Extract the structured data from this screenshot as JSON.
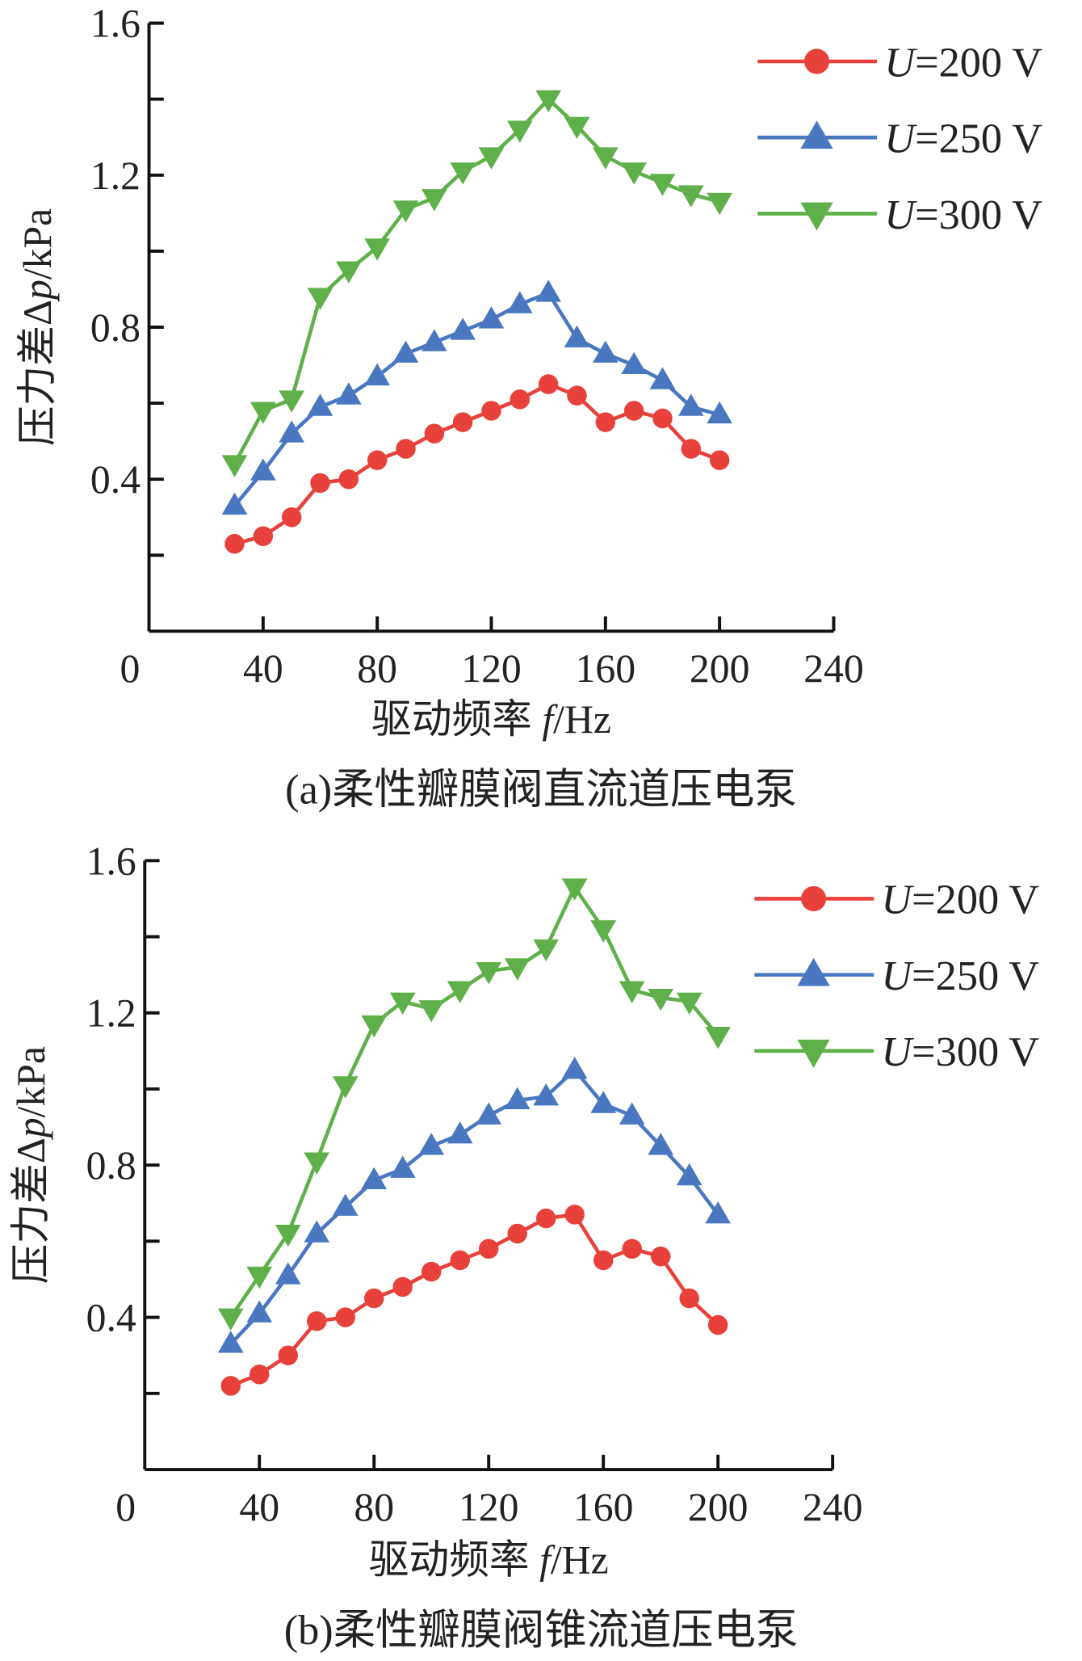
{
  "chart_data": [
    {
      "type": "line",
      "caption": "(a)柔性瓣膜阀直流道压电泵",
      "xlabel": "驱动频率 f/Hz",
      "ylabel": "压力差Δp/kPa",
      "xlim": [
        0,
        240
      ],
      "ylim": [
        0,
        1.6
      ],
      "xticks": [
        "0",
        "40",
        "80",
        "120",
        "160",
        "200",
        "240"
      ],
      "yticks": [
        "0.4",
        "0.8",
        "1.2",
        "1.6"
      ],
      "legend_position": "top-right",
      "x": [
        30,
        40,
        50,
        60,
        70,
        80,
        90,
        100,
        110,
        120,
        130,
        140,
        150,
        160,
        170,
        180,
        190,
        200
      ],
      "series": [
        {
          "name": "U=200 V",
          "marker": "circle",
          "color": "#e8403a",
          "values": [
            0.23,
            0.25,
            0.3,
            0.39,
            0.4,
            0.45,
            0.48,
            0.52,
            0.55,
            0.58,
            0.61,
            0.65,
            0.62,
            0.55,
            0.58,
            0.56,
            0.48,
            0.45
          ]
        },
        {
          "name": "U=250 V",
          "marker": "triangle-up",
          "color": "#4a78c0",
          "values": [
            0.33,
            0.42,
            0.52,
            0.59,
            0.62,
            0.67,
            0.73,
            0.76,
            0.79,
            0.82,
            0.86,
            0.89,
            0.77,
            0.73,
            0.7,
            0.66,
            0.59,
            0.57
          ]
        },
        {
          "name": "U=300 V",
          "marker": "triangle-down",
          "color": "#5fb04a",
          "values": [
            0.44,
            0.58,
            0.61,
            0.88,
            0.95,
            1.01,
            1.11,
            1.14,
            1.21,
            1.25,
            1.32,
            1.4,
            1.33,
            1.25,
            1.21,
            1.18,
            1.15,
            1.13
          ]
        }
      ]
    },
    {
      "type": "line",
      "caption": "(b)柔性瓣膜阀锥流道压电泵",
      "xlabel": "驱动频率 f/Hz",
      "ylabel": "压力差Δp/kPa",
      "xlim": [
        0,
        240
      ],
      "ylim": [
        0,
        1.6
      ],
      "xticks": [
        "0",
        "40",
        "80",
        "120",
        "160",
        "200",
        "240"
      ],
      "yticks": [
        "0.4",
        "0.8",
        "1.2",
        "1.6"
      ],
      "legend_position": "top-right",
      "x": [
        30,
        40,
        50,
        60,
        70,
        80,
        90,
        100,
        110,
        120,
        130,
        140,
        150,
        160,
        170,
        180,
        190,
        200
      ],
      "series": [
        {
          "name": "U=200 V",
          "marker": "circle",
          "color": "#e8403a",
          "values": [
            0.22,
            0.25,
            0.3,
            0.39,
            0.4,
            0.45,
            0.48,
            0.52,
            0.55,
            0.58,
            0.62,
            0.66,
            0.67,
            0.55,
            0.58,
            0.56,
            0.45,
            0.38
          ]
        },
        {
          "name": "U=250 V",
          "marker": "triangle-up",
          "color": "#4a78c0",
          "values": [
            0.33,
            0.41,
            0.51,
            0.62,
            0.69,
            0.76,
            0.79,
            0.85,
            0.88,
            0.93,
            0.97,
            0.98,
            1.05,
            0.96,
            0.93,
            0.85,
            0.77,
            0.67
          ]
        },
        {
          "name": "U=300 V",
          "marker": "triangle-down",
          "color": "#5fb04a",
          "values": [
            0.4,
            0.51,
            0.62,
            0.81,
            1.01,
            1.17,
            1.23,
            1.21,
            1.26,
            1.31,
            1.32,
            1.37,
            1.53,
            1.42,
            1.26,
            1.24,
            1.23,
            1.14
          ]
        }
      ]
    }
  ]
}
